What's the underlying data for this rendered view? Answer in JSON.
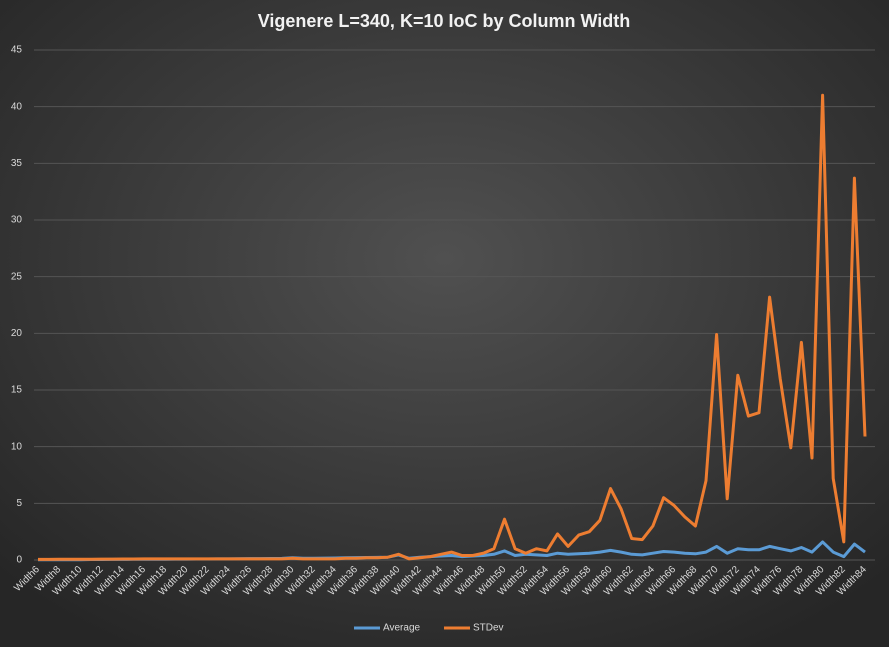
{
  "chart_data": {
    "type": "line",
    "title": "Vigenere L=340, K=10 IoC by Column Width",
    "categories": [
      "Width6",
      null,
      "Width8",
      null,
      "Width10",
      null,
      "Width12",
      null,
      "Width14",
      null,
      "Width16",
      null,
      "Width18",
      null,
      "Width20",
      null,
      "Width22",
      null,
      "Width24",
      null,
      "Width26",
      null,
      "Width28",
      null,
      "Width30",
      null,
      "Width32",
      null,
      "Width34",
      null,
      "Width36",
      null,
      "Width38",
      null,
      "Width40",
      null,
      "Width42",
      null,
      "Width44",
      null,
      "Width46",
      null,
      "Width48",
      null,
      "Width50",
      null,
      "Width52",
      null,
      "Width54",
      null,
      "Width56",
      null,
      "Width58",
      null,
      "Width60",
      null,
      "Width62",
      null,
      "Width64",
      null,
      "Width66",
      null,
      "Width68",
      null,
      "Width70",
      null,
      "Width72",
      null,
      "Width74",
      null,
      "Width76",
      null,
      "Width78",
      null,
      "Width80",
      null,
      "Width82",
      null,
      "Width84"
    ],
    "series": [
      {
        "name": "Average",
        "color": "#5b9bd5",
        "values": [
          0.02,
          0.02,
          0.03,
          0.03,
          0.03,
          0.04,
          0.04,
          0.05,
          0.05,
          0.06,
          0.06,
          0.07,
          0.07,
          0.08,
          0.08,
          0.09,
          0.09,
          0.1,
          0.1,
          0.11,
          0.12,
          0.12,
          0.13,
          0.14,
          0.2,
          0.15,
          0.16,
          0.17,
          0.18,
          0.2,
          0.21,
          0.22,
          0.23,
          0.25,
          0.45,
          0.15,
          0.25,
          0.3,
          0.35,
          0.4,
          0.3,
          0.35,
          0.4,
          0.5,
          0.8,
          0.4,
          0.5,
          0.45,
          0.4,
          0.6,
          0.5,
          0.55,
          0.6,
          0.7,
          0.85,
          0.7,
          0.5,
          0.45,
          0.6,
          0.75,
          0.7,
          0.6,
          0.55,
          0.7,
          1.2,
          0.6,
          1.0,
          0.9,
          0.9,
          1.2,
          1.0,
          0.8,
          1.1,
          0.7,
          1.6,
          0.7,
          0.3,
          1.4,
          0.7
        ]
      },
      {
        "name": "STDev",
        "color": "#ed7d31",
        "values": [
          0.05,
          0.05,
          0.06,
          0.06,
          0.07,
          0.07,
          0.08,
          0.08,
          0.09,
          0.09,
          0.1,
          0.1,
          0.1,
          0.1,
          0.1,
          0.1,
          0.1,
          0.1,
          0.1,
          0.1,
          0.1,
          0.1,
          0.1,
          0.1,
          0.15,
          0.1,
          0.1,
          0.1,
          0.1,
          0.15,
          0.15,
          0.2,
          0.2,
          0.25,
          0.5,
          0.1,
          0.2,
          0.3,
          0.5,
          0.7,
          0.4,
          0.4,
          0.6,
          1.0,
          3.6,
          1.0,
          0.6,
          1.0,
          0.8,
          2.3,
          1.2,
          2.2,
          2.5,
          3.5,
          6.3,
          4.5,
          1.9,
          1.8,
          3.0,
          5.5,
          4.8,
          3.8,
          3.0,
          7.0,
          19.9,
          5.4,
          16.3,
          12.7,
          13.0,
          23.2,
          16.0,
          9.9,
          19.2,
          9.0,
          41.0,
          7.2,
          1.6,
          33.7,
          10.9
        ]
      }
    ],
    "ylim": [
      0,
      45
    ],
    "yticks": [
      0,
      5,
      10,
      15,
      20,
      25,
      30,
      35,
      40,
      45
    ],
    "grid": true,
    "legend": "bottom"
  }
}
